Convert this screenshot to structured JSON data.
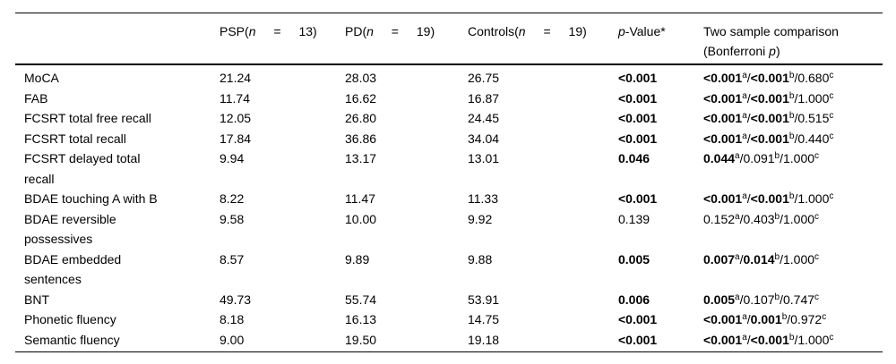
{
  "table": {
    "header": {
      "label": "",
      "psp": {
        "prefix": "PSP(",
        "italic": "n",
        "suffix": " = 13)"
      },
      "pd": {
        "prefix": "PD(",
        "italic": "n",
        "suffix": " = 19)"
      },
      "controls": {
        "prefix": "Controls(",
        "italic": "n",
        "suffix": " = 19)"
      },
      "pvalue": {
        "italic": "p",
        "suffix": "-Value*"
      },
      "comparison": {
        "line1": "Two sample comparison",
        "line2_prefix": "(Bonferroni ",
        "line2_italic": "p",
        "line2_suffix": ")"
      }
    },
    "rows": [
      {
        "label_lines": [
          "MoCA"
        ],
        "psp": "21.24",
        "pd": "28.03",
        "controls": "26.75",
        "p": {
          "text": "<0.001",
          "bold": true
        },
        "comparison": [
          {
            "text": "<0.001",
            "sup": "a",
            "bold": true
          },
          {
            "text": "<0.001",
            "sup": "b",
            "bold": true
          },
          {
            "text": "0.680",
            "sup": "c",
            "bold": false
          }
        ]
      },
      {
        "label_lines": [
          "FAB"
        ],
        "psp": "11.74",
        "pd": "16.62",
        "controls": "16.87",
        "p": {
          "text": "<0.001",
          "bold": true
        },
        "comparison": [
          {
            "text": "<0.001",
            "sup": "a",
            "bold": true
          },
          {
            "text": "<0.001",
            "sup": "b",
            "bold": true
          },
          {
            "text": "1.000",
            "sup": "c",
            "bold": false
          }
        ]
      },
      {
        "label_lines": [
          "FCSRT total free recall"
        ],
        "psp": "12.05",
        "pd": "26.80",
        "controls": "24.45",
        "p": {
          "text": "<0.001",
          "bold": true
        },
        "comparison": [
          {
            "text": "<0.001",
            "sup": "a",
            "bold": true
          },
          {
            "text": "<0.001",
            "sup": "b",
            "bold": true
          },
          {
            "text": "0.515",
            "sup": "c",
            "bold": false
          }
        ]
      },
      {
        "label_lines": [
          "FCSRT total recall"
        ],
        "psp": "17.84",
        "pd": "36.86",
        "controls": "34.04",
        "p": {
          "text": "<0.001",
          "bold": true
        },
        "comparison": [
          {
            "text": "<0.001",
            "sup": "a",
            "bold": true
          },
          {
            "text": "<0.001",
            "sup": "b",
            "bold": true
          },
          {
            "text": "0.440",
            "sup": "c",
            "bold": false
          }
        ]
      },
      {
        "label_lines": [
          "FCSRT delayed total",
          "recall"
        ],
        "psp": "9.94",
        "pd": "13.17",
        "controls": "13.01",
        "p": {
          "text": "0.046",
          "bold": true
        },
        "comparison": [
          {
            "text": "0.044",
            "sup": "a",
            "bold": true
          },
          {
            "text": "0.091",
            "sup": "b",
            "bold": false
          },
          {
            "text": "1.000",
            "sup": "c",
            "bold": false
          }
        ]
      },
      {
        "label_lines": [
          "BDAE touching A with B"
        ],
        "psp": "8.22",
        "pd": "11.47",
        "controls": "11.33",
        "p": {
          "text": "<0.001",
          "bold": true
        },
        "comparison": [
          {
            "text": "<0.001",
            "sup": "a",
            "bold": true
          },
          {
            "text": "<0.001",
            "sup": "b",
            "bold": true
          },
          {
            "text": "1.000",
            "sup": "c",
            "bold": false
          }
        ]
      },
      {
        "label_lines": [
          "BDAE reversible",
          "possessives"
        ],
        "psp": "9.58",
        "pd": "10.00",
        "controls": "9.92",
        "p": {
          "text": "0.139",
          "bold": false
        },
        "comparison": [
          {
            "text": "0.152",
            "sup": "a",
            "bold": false
          },
          {
            "text": "0.403",
            "sup": "b",
            "bold": false
          },
          {
            "text": "1.000",
            "sup": "c",
            "bold": false
          }
        ]
      },
      {
        "label_lines": [
          "BDAE embedded",
          "sentences"
        ],
        "psp": "8.57",
        "pd": "9.89",
        "controls": "9.88",
        "p": {
          "text": "0.005",
          "bold": true
        },
        "comparison": [
          {
            "text": "0.007",
            "sup": "a",
            "bold": true
          },
          {
            "text": "0.014",
            "sup": "b",
            "bold": true
          },
          {
            "text": "1.000",
            "sup": "c",
            "bold": false
          }
        ]
      },
      {
        "label_lines": [
          "BNT"
        ],
        "psp": "49.73",
        "pd": "55.74",
        "controls": "53.91",
        "p": {
          "text": "0.006",
          "bold": true
        },
        "comparison": [
          {
            "text": "0.005",
            "sup": "a",
            "bold": true
          },
          {
            "text": "0.107",
            "sup": "b",
            "bold": false
          },
          {
            "text": "0.747",
            "sup": "c",
            "bold": false
          }
        ]
      },
      {
        "label_lines": [
          "Phonetic fluency"
        ],
        "psp": "8.18",
        "pd": "16.13",
        "controls": "14.75",
        "p": {
          "text": "<0.001",
          "bold": true
        },
        "comparison": [
          {
            "text": "<0.001",
            "sup": "a",
            "bold": true
          },
          {
            "text": "0.001",
            "sup": "b",
            "bold": true
          },
          {
            "text": "0.972",
            "sup": "c",
            "bold": false
          }
        ]
      },
      {
        "label_lines": [
          "Semantic fluency"
        ],
        "psp": "9.00",
        "pd": "19.50",
        "controls": "19.18",
        "p": {
          "text": "<0.001",
          "bold": true
        },
        "comparison": [
          {
            "text": "<0.001",
            "sup": "a",
            "bold": true
          },
          {
            "text": "<0.001",
            "sup": "b",
            "bold": true
          },
          {
            "text": "1.000",
            "sup": "c",
            "bold": false
          }
        ]
      }
    ]
  }
}
